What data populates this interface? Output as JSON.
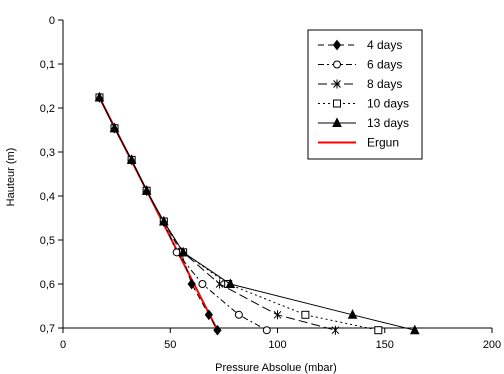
{
  "chart_data": {
    "type": "line",
    "title": "",
    "xlabel": "Pressure Absolue (mbar)",
    "ylabel": "Hauteur (m)",
    "xlim": [
      0,
      200
    ],
    "ylim": [
      0,
      0.7
    ],
    "y_inverted": true,
    "grid": false,
    "legend_position": "top-right",
    "x_ticks": [
      "0",
      "50",
      "100",
      "150",
      "200"
    ],
    "y_ticks": [
      "0",
      "0,1",
      "0,2",
      "0,3",
      "0,4",
      "0,5",
      "0,6",
      "0,7"
    ],
    "series": [
      {
        "name": "4 days",
        "marker": "diamond",
        "dash": "dashed",
        "color": "#000000",
        "points": [
          [
            17,
            0.176
          ],
          [
            24,
            0.246
          ],
          [
            32,
            0.318
          ],
          [
            39,
            0.388
          ],
          [
            47,
            0.458
          ],
          [
            55,
            0.528
          ],
          [
            60,
            0.6
          ],
          [
            68,
            0.67
          ],
          [
            72,
            0.705
          ]
        ]
      },
      {
        "name": "6 days",
        "marker": "circle-open",
        "dash": "dash-dot",
        "color": "#000000",
        "points": [
          [
            17,
            0.176
          ],
          [
            24,
            0.246
          ],
          [
            32,
            0.318
          ],
          [
            39,
            0.388
          ],
          [
            47,
            0.458
          ],
          [
            53,
            0.528
          ],
          [
            65,
            0.6
          ],
          [
            82,
            0.67
          ],
          [
            95,
            0.705
          ]
        ]
      },
      {
        "name": "8 days",
        "marker": "star",
        "dash": "long-dash",
        "color": "#000000",
        "points": [
          [
            17,
            0.176
          ],
          [
            24,
            0.246
          ],
          [
            32,
            0.318
          ],
          [
            39,
            0.388
          ],
          [
            47,
            0.458
          ],
          [
            56,
            0.528
          ],
          [
            73,
            0.6
          ],
          [
            100,
            0.67
          ],
          [
            127,
            0.705
          ]
        ]
      },
      {
        "name": "10 days",
        "marker": "square-open",
        "dash": "dotted",
        "color": "#000000",
        "points": [
          [
            17,
            0.176
          ],
          [
            24,
            0.246
          ],
          [
            32,
            0.318
          ],
          [
            39,
            0.388
          ],
          [
            47,
            0.458
          ],
          [
            56,
            0.528
          ],
          [
            77,
            0.6
          ],
          [
            113,
            0.67
          ],
          [
            147,
            0.705
          ]
        ]
      },
      {
        "name": "13 days",
        "marker": "triangle",
        "dash": "solid",
        "color": "#000000",
        "points": [
          [
            17,
            0.176
          ],
          [
            24,
            0.246
          ],
          [
            32,
            0.318
          ],
          [
            39,
            0.388
          ],
          [
            47,
            0.458
          ],
          [
            56,
            0.528
          ],
          [
            78,
            0.6
          ],
          [
            135,
            0.67
          ],
          [
            164,
            0.705
          ]
        ]
      },
      {
        "name": "Ergun",
        "marker": "none",
        "dash": "solid",
        "color": "#ff0000",
        "points": [
          [
            17,
            0.176
          ],
          [
            72,
            0.705
          ]
        ]
      }
    ]
  }
}
